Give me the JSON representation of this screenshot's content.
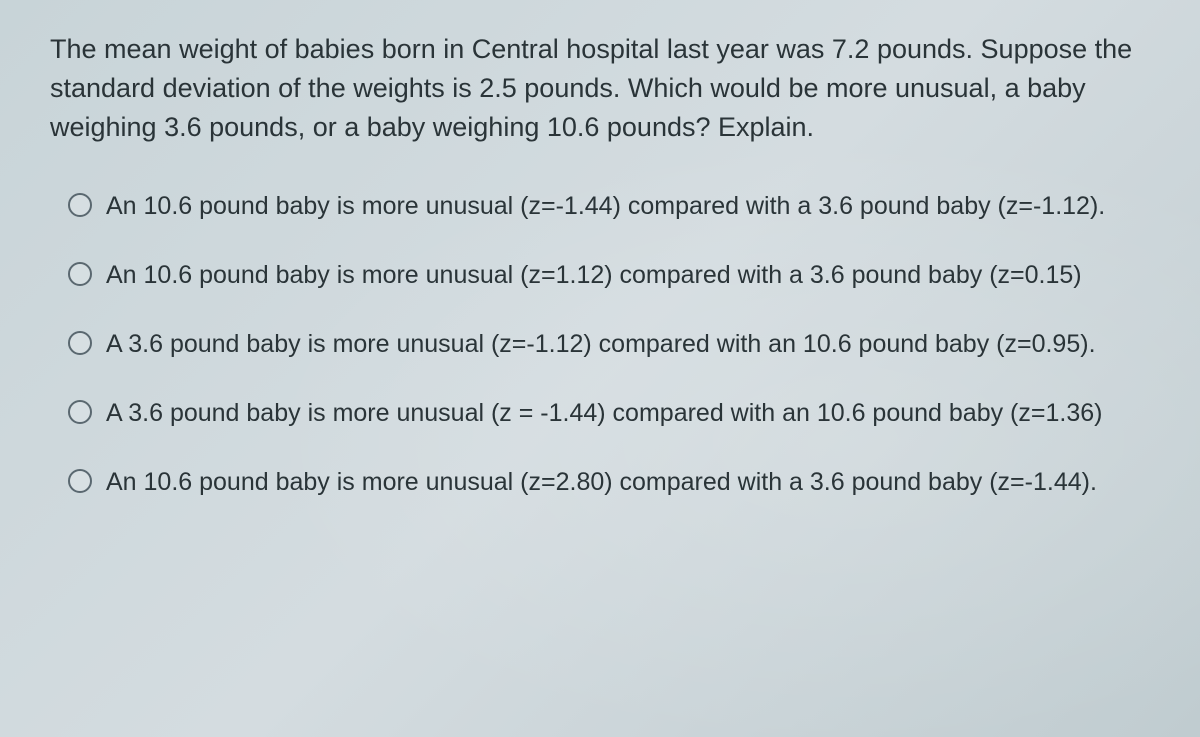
{
  "question": {
    "text": "The mean weight of babies born in Central hospital last year was 7.2 pounds. Suppose the standard deviation of the weights is 2.5 pounds. Which would be more unusual, a baby weighing 3.6 pounds, or a baby weighing 10.6 pounds? Explain.",
    "fontSize": 27,
    "color": "#2a3438"
  },
  "options": [
    {
      "text": "An 10.6 pound baby is more unusual (z=-1.44) compared with a 3.6 pound baby (z=-1.12)."
    },
    {
      "text": "An 10.6 pound baby is more unusual (z=1.12) compared with a 3.6 pound baby (z=0.15)"
    },
    {
      "text": "A 3.6 pound baby is more unusual (z=-1.12) compared with an 10.6 pound baby (z=0.95)."
    },
    {
      "text": "A 3.6 pound baby is more unusual (z = -1.44) compared with an 10.6 pound baby (z=1.36)"
    },
    {
      "text": "An 10.6 pound baby is more unusual (z=2.80) compared with a 3.6 pound baby (z=-1.44)."
    }
  ],
  "styling": {
    "backgroundColor": "#cdd8dc",
    "optionFontSize": 25,
    "radioBorderColor": "#5a6870",
    "radioSize": 24,
    "lineSpacing": 1.4
  }
}
